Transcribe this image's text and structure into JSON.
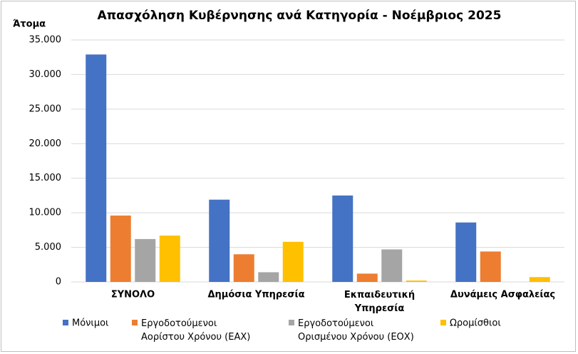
{
  "chart_data": {
    "type": "bar",
    "title": "Απασχόληση Κυβέρνησης ανά Κατηγορία - Νοέμβριος 2025",
    "y_label": "Άτομα",
    "categories": [
      "ΣΥΝΟΛΟ",
      "Δημόσια Υπηρεσία",
      "Εκπαιδευτική Υπηρεσία",
      "Δυνάμεις Ασφαλείας"
    ],
    "series": [
      {
        "name": "Μόνιμοι",
        "color": "#4472c4",
        "values": [
          32900,
          11900,
          12500,
          8600
        ]
      },
      {
        "name": "Εργοδοτούμενοι Αορίστου Χρόνου (ΕΑΧ)",
        "color": "#ed7d31",
        "values": [
          9600,
          4000,
          1200,
          4400
        ]
      },
      {
        "name": "Εργοδοτούμενοι Ορισμένου Χρόνου (ΕΟΧ)",
        "color": "#a5a5a5",
        "values": [
          6200,
          1400,
          4700,
          0
        ]
      },
      {
        "name": "Ωρομίσθιοι",
        "color": "#ffc000",
        "values": [
          6700,
          5800,
          200,
          700
        ]
      }
    ],
    "ylim": [
      0,
      35000
    ],
    "yticks": [
      0,
      {
        "value": 5000,
        "label": "5.000"
      },
      {
        "value": 10000,
        "label": "10.000"
      },
      {
        "value": 15000,
        "label": "15.000"
      },
      {
        "value": 20000,
        "label": "20.000"
      },
      {
        "value": 25000,
        "label": "25.000"
      },
      {
        "value": 30000,
        "label": "30.000"
      },
      {
        "value": 35000,
        "label": "35.000"
      }
    ],
    "grid": true,
    "legend": "bottom"
  }
}
